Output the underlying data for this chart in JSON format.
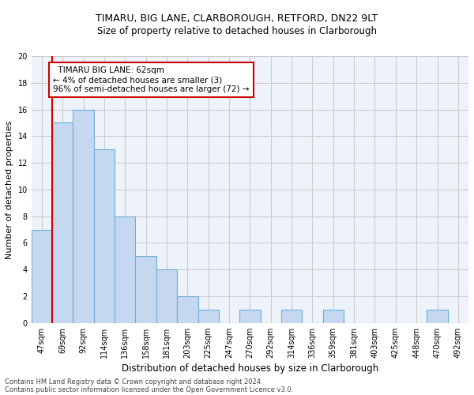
{
  "title1": "TIMARU, BIG LANE, CLARBOROUGH, RETFORD, DN22 9LT",
  "title2": "Size of property relative to detached houses in Clarborough",
  "xlabel": "Distribution of detached houses by size in Clarborough",
  "ylabel": "Number of detached properties",
  "footnote1": "Contains HM Land Registry data © Crown copyright and database right 2024.",
  "footnote2": "Contains public sector information licensed under the Open Government Licence v3.0.",
  "categories": [
    "47sqm",
    "69sqm",
    "92sqm",
    "114sqm",
    "136sqm",
    "158sqm",
    "181sqm",
    "203sqm",
    "225sqm",
    "247sqm",
    "270sqm",
    "292sqm",
    "314sqm",
    "336sqm",
    "359sqm",
    "381sqm",
    "403sqm",
    "425sqm",
    "448sqm",
    "470sqm",
    "492sqm"
  ],
  "values": [
    7,
    15,
    16,
    13,
    8,
    5,
    4,
    2,
    1,
    0,
    1,
    0,
    1,
    0,
    1,
    0,
    0,
    0,
    0,
    1,
    0
  ],
  "bar_color": "#c5d8f0",
  "bar_edge_color": "#6aaed6",
  "highlight_label": "TIMARU BIG LANE: 62sqm",
  "highlight_pct_smaller": "4%",
  "highlight_smaller_n": 3,
  "highlight_pct_larger": "96%",
  "highlight_larger_n": 72,
  "vline_color": "#cc0000",
  "annotation_box_color": "#cc0000",
  "ylim": [
    0,
    20
  ],
  "yticks": [
    0,
    2,
    4,
    6,
    8,
    10,
    12,
    14,
    16,
    18,
    20
  ],
  "grid_color": "#cccccc",
  "bg_color": "#eef3fb",
  "title1_fontsize": 9,
  "title2_fontsize": 8.5,
  "ylabel_fontsize": 8,
  "xlabel_fontsize": 8.5,
  "tick_fontsize": 7,
  "footnote_fontsize": 6,
  "annot_fontsize": 7.5
}
